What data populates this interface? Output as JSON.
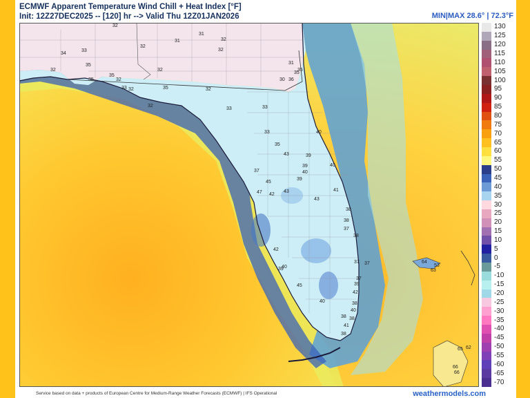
{
  "header": {
    "title": "ECMWF Apparent Temperature Wind Chill + Heat Index [°F]",
    "subtitle": "Init: 12Z27DEC2025 -- [120] hr --> Valid Thu 12Z01JAN2026",
    "minmax": "MIN|MAX 28.6° | 72.3°F"
  },
  "footer": {
    "credit": "Service based on data + products of European Centre for Medium-Range Weather Forecasts (ECMWF) | IFS Operational",
    "site": "weathermodels.com"
  },
  "colorbar": {
    "labels": [
      "130",
      "125",
      "120",
      "115",
      "110",
      "105",
      "100",
      "95",
      "90",
      "85",
      "80",
      "75",
      "70",
      "65",
      "60",
      "55",
      "50",
      "45",
      "40",
      "35",
      "30",
      "25",
      "20",
      "15",
      "10",
      "5",
      "0",
      "-5",
      "-10",
      "-15",
      "-20",
      "-25",
      "-30",
      "-35",
      "-40",
      "-45",
      "-50",
      "-55",
      "-60",
      "-65",
      "-70"
    ],
    "colors": [
      "#e8e8e8",
      "#b0a8b8",
      "#8a6e86",
      "#a0607a",
      "#b05070",
      "#c0606e",
      "#7a3030",
      "#8a2020",
      "#b01818",
      "#d02010",
      "#e05010",
      "#f07a10",
      "#f8a010",
      "#ffc020",
      "#ffe040",
      "#fff880",
      "#2a3e8a",
      "#3a62b8",
      "#6c9ad6",
      "#a8d4f0",
      "#ffd8e0",
      "#e8a8c0",
      "#d090b8",
      "#a070b0",
      "#7050a8",
      "#2020a0",
      "#3a5aa0",
      "#6a9a9a",
      "#9adcdc",
      "#b8f0f0",
      "#a0d8e8",
      "#f8c8e0",
      "#ffa0d0",
      "#ff78c0",
      "#e050b0",
      "#c040a8",
      "#a040b0",
      "#8040b8",
      "#6040b8",
      "#5a3aa0",
      "#4a2e90"
    ]
  },
  "map": {
    "stations": [
      {
        "v": "32"
      },
      {
        "v": "31"
      },
      {
        "v": "32"
      },
      {
        "v": "31"
      },
      {
        "v": "32"
      },
      {
        "v": "32"
      },
      {
        "v": "34"
      },
      {
        "v": "33"
      },
      {
        "v": "32"
      },
      {
        "v": "35"
      },
      {
        "v": "32"
      },
      {
        "v": "35"
      },
      {
        "v": "35"
      },
      {
        "v": "32"
      },
      {
        "v": "33"
      },
      {
        "v": "35"
      },
      {
        "v": "32"
      },
      {
        "v": "32"
      },
      {
        "v": "32"
      },
      {
        "v": "31"
      },
      {
        "v": "35"
      },
      {
        "v": "30"
      },
      {
        "v": "36"
      },
      {
        "v": "35"
      },
      {
        "v": "33"
      },
      {
        "v": "33"
      },
      {
        "v": "40"
      },
      {
        "v": "33"
      },
      {
        "v": "35"
      },
      {
        "v": "39"
      },
      {
        "v": "37"
      },
      {
        "v": "43"
      },
      {
        "v": "39"
      },
      {
        "v": "40"
      },
      {
        "v": "40"
      },
      {
        "v": "39"
      },
      {
        "v": "45"
      },
      {
        "v": "43"
      },
      {
        "v": "42"
      },
      {
        "v": "47"
      },
      {
        "v": "43"
      },
      {
        "v": "41"
      },
      {
        "v": "38"
      },
      {
        "v": "38"
      },
      {
        "v": "37"
      },
      {
        "v": "42"
      },
      {
        "v": "38"
      },
      {
        "v": "37"
      },
      {
        "v": "39"
      },
      {
        "v": "40"
      },
      {
        "v": "42"
      },
      {
        "v": "37"
      },
      {
        "v": "39"
      },
      {
        "v": "38"
      },
      {
        "v": "40"
      },
      {
        "v": "38"
      },
      {
        "v": "41"
      },
      {
        "v": "45"
      },
      {
        "v": "40"
      },
      {
        "v": "38"
      },
      {
        "v": "38"
      },
      {
        "v": "37"
      },
      {
        "v": "64"
      },
      {
        "v": "53"
      },
      {
        "v": "63"
      },
      {
        "v": "65"
      },
      {
        "v": "66"
      },
      {
        "v": "66"
      },
      {
        "v": "62"
      }
    ]
  }
}
